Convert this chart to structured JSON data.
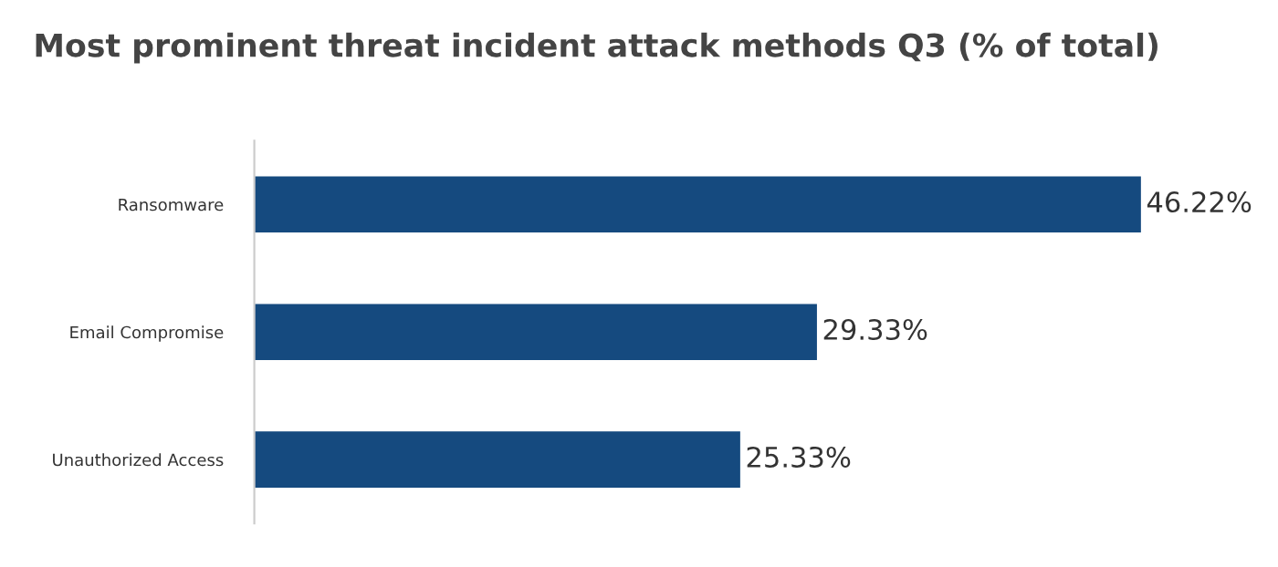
{
  "chart_data": {
    "type": "bar",
    "orientation": "horizontal",
    "title": "Most prominent threat incident attack methods Q3 (% of total)",
    "categories": [
      "Ransomware",
      "Email Compromise",
      "Unauthorized Access"
    ],
    "values": [
      46.22,
      29.33,
      25.33
    ],
    "value_labels": [
      "46.22%",
      "29.33%",
      "25.33%"
    ],
    "color": "#154a7f",
    "grid": false,
    "legend": false
  }
}
